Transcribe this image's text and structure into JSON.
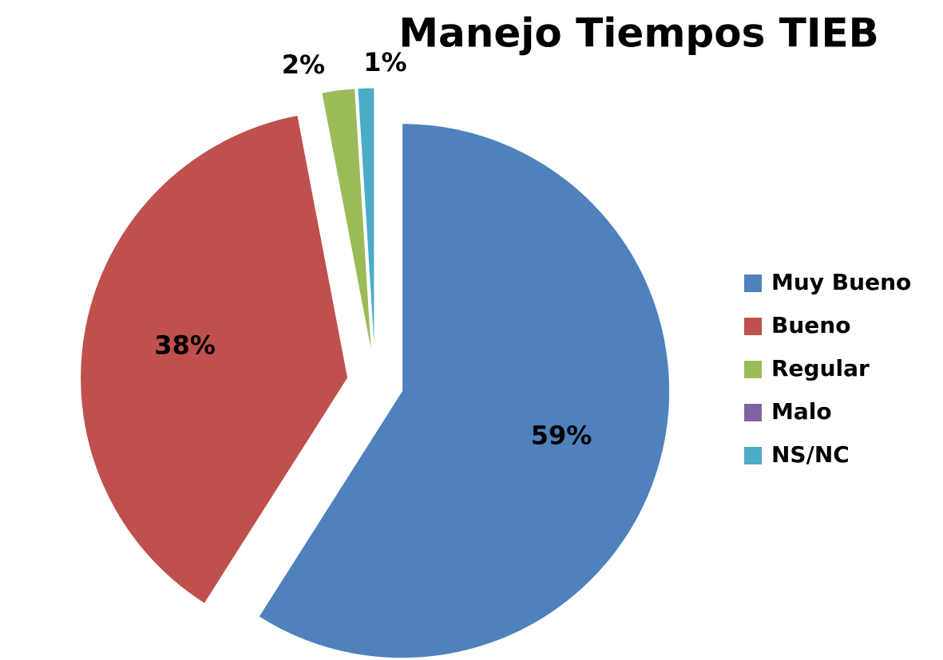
{
  "chart_data": {
    "type": "pie",
    "title": "Manejo Tiempos TIEB",
    "categories": [
      "Muy Bueno",
      "Bueno",
      "Regular",
      "Malo",
      "NS/NC"
    ],
    "values": [
      59,
      38,
      2,
      0,
      1
    ],
    "value_labels": [
      "59%",
      "38%",
      "2%",
      null,
      "1%"
    ],
    "colors": [
      "#4f81bd",
      "#c0504d",
      "#9bbb59",
      "#8064a2",
      "#4bacc6"
    ],
    "legend": "right"
  }
}
